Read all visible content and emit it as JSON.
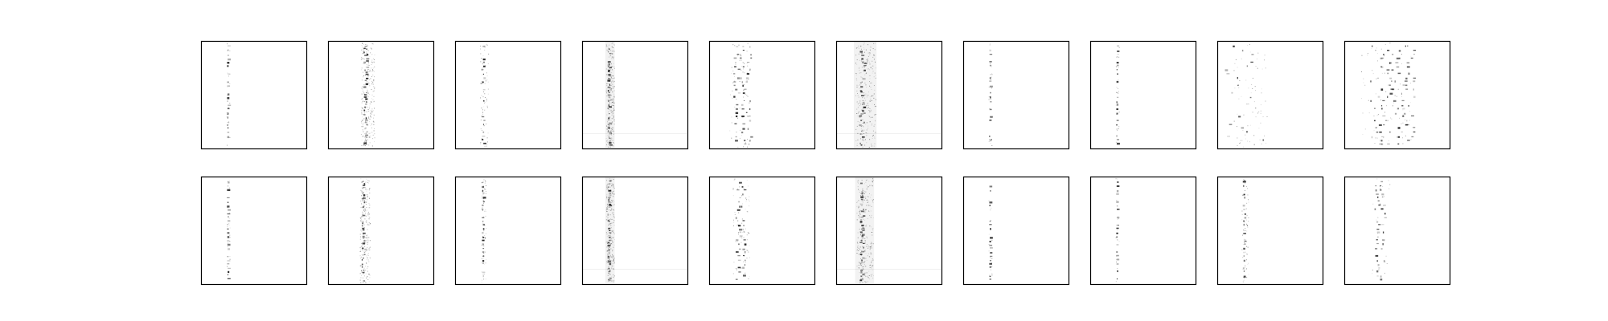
{
  "figure": {
    "rows": 2,
    "columns": 10,
    "background_color": "#ffffff",
    "frame_color": "#000000",
    "ink_color": "#000000",
    "axes_ticks_visible": false,
    "panels": [
      {
        "row": 0,
        "col": 0,
        "pattern": "single-column",
        "column_position": 0.25,
        "spread": 0.02,
        "density": "sparse"
      },
      {
        "row": 0,
        "col": 1,
        "pattern": "dense-band",
        "column_position": 0.35,
        "spread": 0.08,
        "density": "high"
      },
      {
        "row": 0,
        "col": 2,
        "pattern": "single-column",
        "column_position": 0.26,
        "spread": 0.05,
        "density": "medium"
      },
      {
        "row": 0,
        "col": 3,
        "pattern": "noisy-band",
        "column_position": 0.25,
        "spread": 0.05,
        "density": "high"
      },
      {
        "row": 0,
        "col": 4,
        "pattern": "triple-column",
        "column_position": 0.25,
        "spread": 0.12,
        "density": "medium"
      },
      {
        "row": 0,
        "col": 5,
        "pattern": "noisy-band",
        "column_position": 0.24,
        "spread": 0.12,
        "density": "high"
      },
      {
        "row": 0,
        "col": 6,
        "pattern": "single-column",
        "column_position": 0.25,
        "spread": 0.02,
        "density": "sparse"
      },
      {
        "row": 0,
        "col": 7,
        "pattern": "single-column",
        "column_position": 0.25,
        "spread": 0.02,
        "density": "sparse"
      },
      {
        "row": 0,
        "col": 8,
        "pattern": "scattered",
        "column_position": 0.25,
        "spread": 0.2,
        "density": "medium"
      },
      {
        "row": 0,
        "col": 9,
        "pattern": "multi-column",
        "column_position": 0.3,
        "spread": 0.3,
        "density": "medium"
      },
      {
        "row": 1,
        "col": 0,
        "pattern": "single-column",
        "column_position": 0.25,
        "spread": 0.02,
        "density": "sparse"
      },
      {
        "row": 1,
        "col": 1,
        "pattern": "dense-band",
        "column_position": 0.33,
        "spread": 0.06,
        "density": "high"
      },
      {
        "row": 1,
        "col": 2,
        "pattern": "single-column",
        "column_position": 0.26,
        "spread": 0.03,
        "density": "medium"
      },
      {
        "row": 1,
        "col": 3,
        "pattern": "noisy-band",
        "column_position": 0.25,
        "spread": 0.05,
        "density": "high"
      },
      {
        "row": 1,
        "col": 4,
        "pattern": "double-column",
        "column_position": 0.27,
        "spread": 0.1,
        "density": "medium"
      },
      {
        "row": 1,
        "col": 5,
        "pattern": "noisy-band",
        "column_position": 0.24,
        "spread": 0.1,
        "density": "high"
      },
      {
        "row": 1,
        "col": 6,
        "pattern": "single-column",
        "column_position": 0.25,
        "spread": 0.02,
        "density": "sparse"
      },
      {
        "row": 1,
        "col": 7,
        "pattern": "single-column",
        "column_position": 0.25,
        "spread": 0.02,
        "density": "sparse"
      },
      {
        "row": 1,
        "col": 8,
        "pattern": "single-column",
        "column_position": 0.25,
        "spread": 0.04,
        "density": "medium"
      },
      {
        "row": 1,
        "col": 9,
        "pattern": "double-column",
        "column_position": 0.3,
        "spread": 0.12,
        "density": "sparse"
      }
    ]
  }
}
